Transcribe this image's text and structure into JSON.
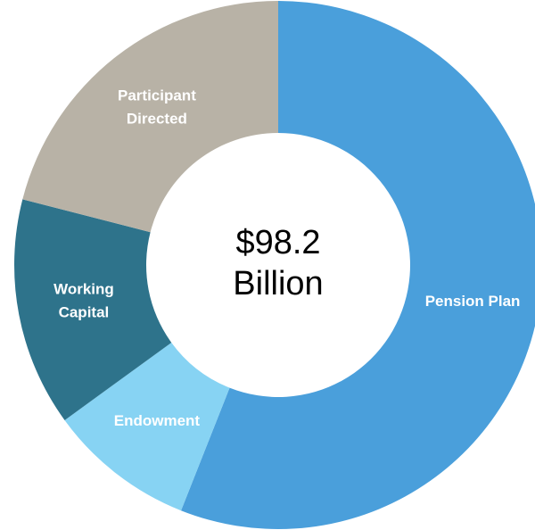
{
  "chart_data": {
    "type": "donut",
    "center_label": "$98.2 Billion",
    "categories": [
      "Pension Plan",
      "Endowment",
      "Working Capital",
      "Participant Directed"
    ],
    "values": [
      56,
      9,
      14,
      21
    ],
    "colors": [
      "#4a9fdb",
      "#87d3f3",
      "#2e738b",
      "#b8b2a6"
    ]
  }
}
